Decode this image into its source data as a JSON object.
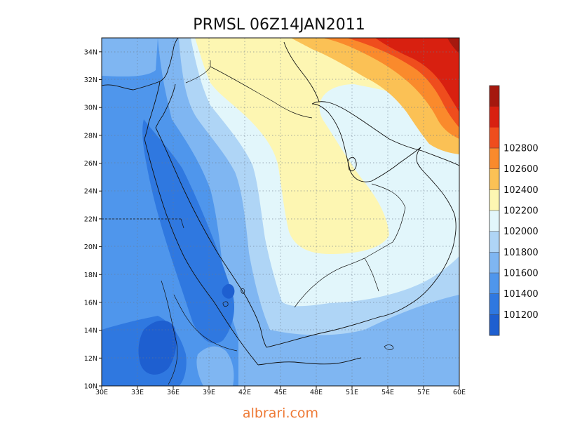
{
  "title": "PRMSL 06Z14JAN2011",
  "watermark": "albrari.com",
  "map": {
    "lon_range": [
      30,
      60
    ],
    "lat_range": [
      10,
      35
    ],
    "x_ticks": [
      "30E",
      "33E",
      "36E",
      "39E",
      "42E",
      "45E",
      "48E",
      "51E",
      "54E",
      "57E",
      "60E"
    ],
    "y_ticks": [
      "10N",
      "12N",
      "14N",
      "16N",
      "18N",
      "20N",
      "22N",
      "24N",
      "26N",
      "28N",
      "30N",
      "32N",
      "34N"
    ],
    "grid": true
  },
  "colorbar": {
    "levels": [
      {
        "label": "",
        "color": "#1e5fd0"
      },
      {
        "label": "101200",
        "color": "#2f78e0"
      },
      {
        "label": "101400",
        "color": "#4f96ec"
      },
      {
        "label": "101600",
        "color": "#7fb6f2"
      },
      {
        "label": "101800",
        "color": "#afd5f6"
      },
      {
        "label": "102000",
        "color": "#e2f6fb"
      },
      {
        "label": "102200",
        "color": "#fdf6b2"
      },
      {
        "label": "102400",
        "color": "#fbc155"
      },
      {
        "label": "102600",
        "color": "#fa8a2c"
      },
      {
        "label": "102800",
        "color": "#ef4d1d"
      },
      {
        "label": "",
        "color": "#d82010"
      },
      {
        "label": "",
        "color": "#a5180e"
      }
    ]
  }
}
